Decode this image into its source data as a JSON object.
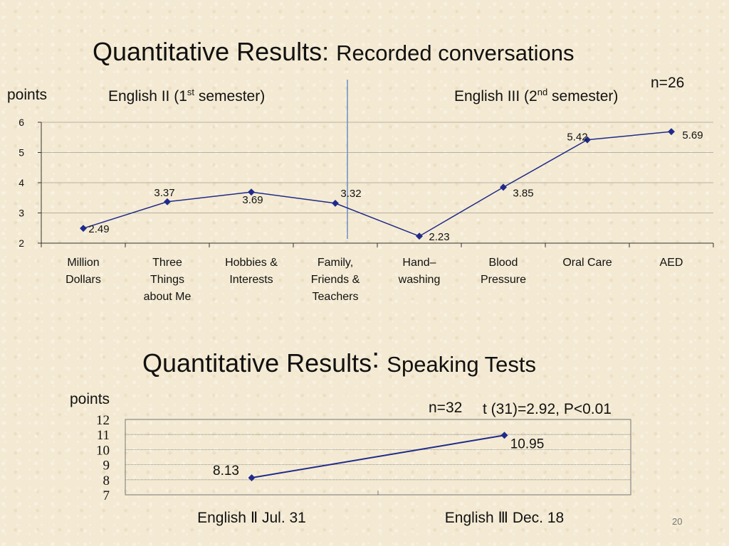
{
  "page_number": "20",
  "charts": [
    {
      "title_main": "Quantitative Results:",
      "title_sub": "Recorded conversations",
      "ylabel": "points",
      "n_label": "n=26",
      "semester_left": "English II (1st  semester)",
      "semester_right": "English III (2nd semester)"
    },
    {
      "title_main": "Quantitative Results",
      "title_colon": ":",
      "title_sub": "Speaking Tests",
      "ylabel": "points",
      "n_label": "n=32",
      "stat_label": "t (31)=2.92, P<0.01"
    }
  ],
  "chart_data": [
    {
      "type": "line",
      "title": "Quantitative Results: Recorded conversations",
      "ylabel": "points",
      "ylim": [
        2,
        6
      ],
      "yticks": [
        "2",
        "3",
        "4",
        "5",
        "6"
      ],
      "categories": [
        [
          "Million",
          "Dollars"
        ],
        [
          "Three",
          "Things",
          "about Me"
        ],
        [
          "Hobbies &",
          "Interests"
        ],
        [
          "Family,",
          "Friends &",
          "Teachers"
        ],
        [
          "Hand–",
          "washing"
        ],
        [
          "Blood",
          "Pressure"
        ],
        [
          "Oral Care"
        ],
        [
          "AED"
        ]
      ],
      "values": [
        2.49,
        3.37,
        3.69,
        3.32,
        2.23,
        3.85,
        5.42,
        5.69
      ],
      "data_labels": [
        "2.49",
        "3.37",
        "3.69",
        "3.32",
        "2.23",
        "3.85",
        "5.42",
        "5.69"
      ],
      "grid": true,
      "line_color": "#1f2a8a"
    },
    {
      "type": "line",
      "title": "Quantitative Results: Speaking Tests",
      "ylabel": "points",
      "ylim": [
        7,
        12
      ],
      "yticks": [
        "7",
        "8",
        "9",
        "10",
        "11",
        "12"
      ],
      "categories": [
        "English Ⅱ Jul. 31",
        "English Ⅲ Dec. 18"
      ],
      "values": [
        8.13,
        10.95
      ],
      "data_labels": [
        "8.13",
        "10.95"
      ],
      "grid": true,
      "line_color": "#1f2a8a"
    }
  ]
}
